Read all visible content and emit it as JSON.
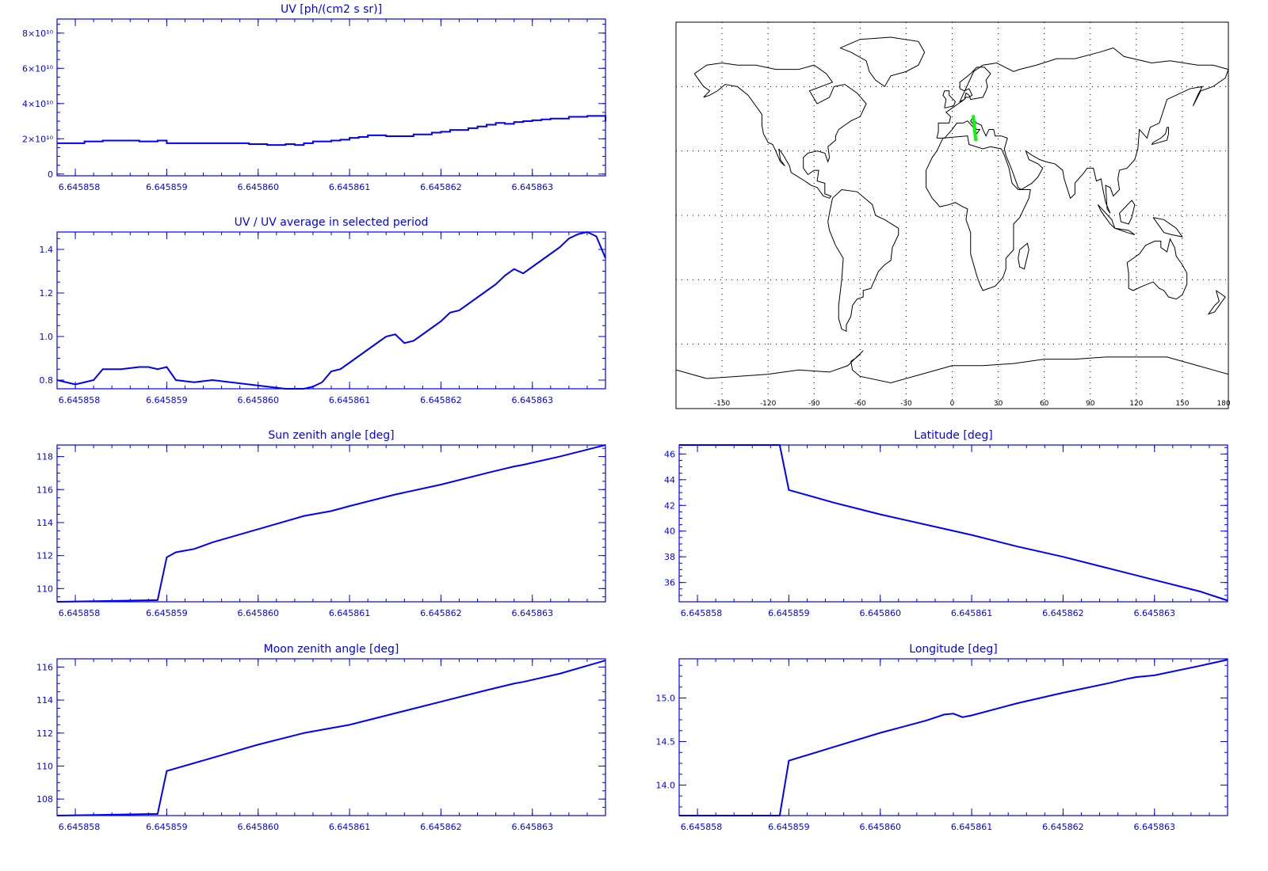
{
  "colors": {
    "plot": "#0000ff",
    "background": "#ffffff",
    "map_line": "#000000",
    "map_track": "#00ff00",
    "map_grid": "#000000"
  },
  "chart_data": [
    {
      "id": "uv",
      "type": "line",
      "step": true,
      "title": "UV [ph/(cm2 s sr)]",
      "xlim": [
        6.6458578,
        6.6458638
      ],
      "xticks": [
        6.645858,
        6.645859,
        6.64586,
        6.645861,
        6.645862,
        6.645863
      ],
      "xtick_labels": [
        "6.645858",
        "6.645859",
        "6.645860",
        "6.645861",
        "6.645862",
        "6.645863"
      ],
      "ylim": [
        -1000000000.0,
        88000000000.0
      ],
      "yticks": [
        0,
        20000000000.0,
        40000000000.0,
        60000000000.0,
        80000000000.0
      ],
      "ytick_labels": [
        "0",
        "2×10¹⁰",
        "4×10¹⁰",
        "6×10¹⁰",
        "8×10¹⁰"
      ],
      "x": [
        6.6458578,
        6.6458581,
        6.6458583,
        6.6458585,
        6.6458587,
        6.6458589,
        6.645859,
        6.6458591,
        6.6458593,
        6.6458595,
        6.6458597,
        6.6458599,
        6.6458601,
        6.6458603,
        6.6458604,
        6.6458605,
        6.6458606,
        6.6458608,
        6.6458609,
        6.645861,
        6.6458611,
        6.6458612,
        6.6458614,
        6.6458616,
        6.6458617,
        6.6458619,
        6.645862,
        6.6458621,
        6.6458623,
        6.6458624,
        6.6458625,
        6.6458626,
        6.6458627,
        6.6458628,
        6.6458629,
        6.645863,
        6.6458631,
        6.6458632,
        6.6458634,
        6.6458636,
        6.6458638
      ],
      "y": [
        17500000000.0,
        18500000000.0,
        19000000000.0,
        19000000000.0,
        18500000000.0,
        19000000000.0,
        17500000000.0,
        17500000000.0,
        17500000000.0,
        17500000000.0,
        17500000000.0,
        17000000000.0,
        16500000000.0,
        17000000000.0,
        16500000000.0,
        17500000000.0,
        18500000000.0,
        19000000000.0,
        19500000000.0,
        20500000000.0,
        21000000000.0,
        22000000000.0,
        21500000000.0,
        21500000000.0,
        22500000000.0,
        23500000000.0,
        24000000000.0,
        25000000000.0,
        26000000000.0,
        27000000000.0,
        28000000000.0,
        29000000000.0,
        28500000000.0,
        29500000000.0,
        30000000000.0,
        30500000000.0,
        31000000000.0,
        31500000000.0,
        32500000000.0,
        33000000000.0,
        30000000000.0
      ]
    },
    {
      "id": "uv_ratio",
      "type": "line",
      "title": "UV / UV average in selected period",
      "xlim": [
        6.6458578,
        6.6458638
      ],
      "xticks": [
        6.645858,
        6.645859,
        6.64586,
        6.645861,
        6.645862,
        6.645863
      ],
      "xtick_labels": [
        "6.645858",
        "6.645859",
        "6.645860",
        "6.645861",
        "6.645862",
        "6.645863"
      ],
      "ylim": [
        0.76,
        1.48
      ],
      "yticks": [
        0.8,
        1.0,
        1.2,
        1.4
      ],
      "ytick_labels": [
        "0.8",
        "1.0",
        "1.2",
        "1.4"
      ],
      "x": [
        6.6458578,
        6.6458579,
        6.645858,
        6.6458581,
        6.6458582,
        6.6458583,
        6.6458585,
        6.6458587,
        6.6458588,
        6.6458589,
        6.645859,
        6.6458591,
        6.6458593,
        6.6458595,
        6.6458597,
        6.6458599,
        6.6458601,
        6.6458603,
        6.6458605,
        6.6458606,
        6.6458607,
        6.6458608,
        6.6458609,
        6.645861,
        6.6458611,
        6.6458612,
        6.6458613,
        6.6458614,
        6.6458615,
        6.6458616,
        6.6458617,
        6.6458618,
        6.6458619,
        6.645862,
        6.6458621,
        6.6458622,
        6.6458623,
        6.6458624,
        6.6458625,
        6.6458626,
        6.6458627,
        6.6458628,
        6.6458629,
        6.645863,
        6.6458631,
        6.6458632,
        6.6458633,
        6.6458634,
        6.6458635,
        6.6458636,
        6.6458637,
        6.6458638
      ],
      "y": [
        0.8,
        0.79,
        0.78,
        0.79,
        0.8,
        0.85,
        0.85,
        0.86,
        0.86,
        0.85,
        0.86,
        0.8,
        0.79,
        0.8,
        0.79,
        0.78,
        0.77,
        0.76,
        0.76,
        0.77,
        0.79,
        0.84,
        0.85,
        0.88,
        0.91,
        0.94,
        0.97,
        1.0,
        1.01,
        0.97,
        0.98,
        1.01,
        1.04,
        1.07,
        1.11,
        1.12,
        1.15,
        1.18,
        1.21,
        1.24,
        1.28,
        1.31,
        1.29,
        1.32,
        1.35,
        1.38,
        1.41,
        1.45,
        1.47,
        1.48,
        1.46,
        1.36
      ]
    },
    {
      "id": "sun_zenith",
      "type": "line",
      "title": "Sun zenith angle [deg]",
      "xlim": [
        6.6458578,
        6.6458638
      ],
      "xticks": [
        6.645858,
        6.645859,
        6.64586,
        6.645861,
        6.645862,
        6.645863
      ],
      "xtick_labels": [
        "6.645858",
        "6.645859",
        "6.645860",
        "6.645861",
        "6.645862",
        "6.645863"
      ],
      "ylim": [
        109.2,
        118.7
      ],
      "yticks": [
        110,
        112,
        114,
        116,
        118
      ],
      "ytick_labels": [
        "110",
        "112",
        "114",
        "116",
        "118"
      ],
      "x": [
        6.6458578,
        6.6458589,
        6.645859,
        6.6458591,
        6.6458592,
        6.6458593,
        6.6458595,
        6.64586,
        6.6458605,
        6.6458608,
        6.645861,
        6.6458615,
        6.645862,
        6.6458625,
        6.6458628,
        6.6458629,
        6.6458633,
        6.6458638
      ],
      "y": [
        109.2,
        109.3,
        111.9,
        112.2,
        112.3,
        112.4,
        112.8,
        113.6,
        114.4,
        114.7,
        115.0,
        115.7,
        116.3,
        117.0,
        117.4,
        117.5,
        118.0,
        118.7
      ]
    },
    {
      "id": "latitude",
      "type": "line",
      "title": "Latitude [deg]",
      "xlim": [
        6.6458578,
        6.6458638
      ],
      "xticks": [
        6.645858,
        6.645859,
        6.64586,
        6.645861,
        6.645862,
        6.645863
      ],
      "xtick_labels": [
        "6.645858",
        "6.645859",
        "6.645860",
        "6.645861",
        "6.645862",
        "6.645863"
      ],
      "ylim": [
        34.5,
        46.7
      ],
      "yticks": [
        36,
        38,
        40,
        42,
        44,
        46
      ],
      "ytick_labels": [
        "36",
        "38",
        "40",
        "42",
        "44",
        "46"
      ],
      "x": [
        6.6458578,
        6.6458589,
        6.645859,
        6.6458595,
        6.64586,
        6.6458605,
        6.645861,
        6.6458615,
        6.645862,
        6.6458625,
        6.645863,
        6.6458635,
        6.6458638
      ],
      "y": [
        46.7,
        46.7,
        43.2,
        42.2,
        41.3,
        40.5,
        39.7,
        38.8,
        38.0,
        37.1,
        36.2,
        35.3,
        34.6
      ]
    },
    {
      "id": "moon_zenith",
      "type": "line",
      "title": "Moon zenith angle [deg]",
      "xlim": [
        6.6458578,
        6.6458638
      ],
      "xticks": [
        6.645858,
        6.645859,
        6.64586,
        6.645861,
        6.645862,
        6.645863
      ],
      "xtick_labels": [
        "6.645858",
        "6.645859",
        "6.645860",
        "6.645861",
        "6.645862",
        "6.645863"
      ],
      "ylim": [
        107.0,
        116.5
      ],
      "yticks": [
        108,
        110,
        112,
        114,
        116
      ],
      "ytick_labels": [
        "108",
        "110",
        "112",
        "114",
        "116"
      ],
      "x": [
        6.6458578,
        6.6458589,
        6.645859,
        6.6458595,
        6.64586,
        6.6458605,
        6.6458608,
        6.645861,
        6.6458615,
        6.645862,
        6.6458625,
        6.6458628,
        6.6458629,
        6.6458633,
        6.6458638
      ],
      "y": [
        107.0,
        107.1,
        109.7,
        110.5,
        111.3,
        112.0,
        112.3,
        112.5,
        113.2,
        113.9,
        114.6,
        115.0,
        115.1,
        115.6,
        116.4
      ]
    },
    {
      "id": "longitude",
      "type": "line",
      "title": "Longitude [deg]",
      "xlim": [
        6.6458578,
        6.6458638
      ],
      "xticks": [
        6.645858,
        6.645859,
        6.64586,
        6.645861,
        6.645862,
        6.645863
      ],
      "xtick_labels": [
        "6.645858",
        "6.645859",
        "6.645860",
        "6.645861",
        "6.645862",
        "6.645863"
      ],
      "ylim": [
        13.65,
        15.45
      ],
      "yticks": [
        14.0,
        14.5,
        15.0
      ],
      "ytick_labels": [
        "14.0",
        "14.5",
        "15.0"
      ],
      "x": [
        6.6458578,
        6.6458589,
        6.645859,
        6.6458595,
        6.64586,
        6.6458605,
        6.6458607,
        6.6458608,
        6.6458609,
        6.645861,
        6.6458615,
        6.645862,
        6.6458625,
        6.6458627,
        6.6458628,
        6.645863,
        6.6458635,
        6.6458638
      ],
      "y": [
        13.65,
        13.65,
        14.28,
        14.44,
        14.6,
        14.74,
        14.81,
        14.82,
        14.78,
        14.8,
        14.94,
        15.06,
        15.17,
        15.22,
        15.24,
        15.26,
        15.37,
        15.44
      ]
    }
  ],
  "map": {
    "xticks": [
      -150,
      -120,
      -90,
      -60,
      -30,
      0,
      30,
      60,
      90,
      120,
      150,
      180
    ],
    "xtick_labels": [
      "-150",
      "-120",
      "-90",
      "-60",
      "-30",
      "0",
      "30",
      "60",
      "90",
      "120",
      "150",
      "180"
    ],
    "lon_range": [
      -180,
      180
    ],
    "lat_range": [
      -90,
      90
    ],
    "grid_lons": [
      -150,
      -120,
      -90,
      -60,
      -30,
      0,
      30,
      60,
      90,
      120,
      150
    ],
    "grid_lats": [
      -60,
      -30,
      0,
      30,
      60
    ],
    "track": {
      "lon": [
        13.7,
        15.4
      ],
      "lat": [
        46.7,
        34.6
      ]
    }
  }
}
